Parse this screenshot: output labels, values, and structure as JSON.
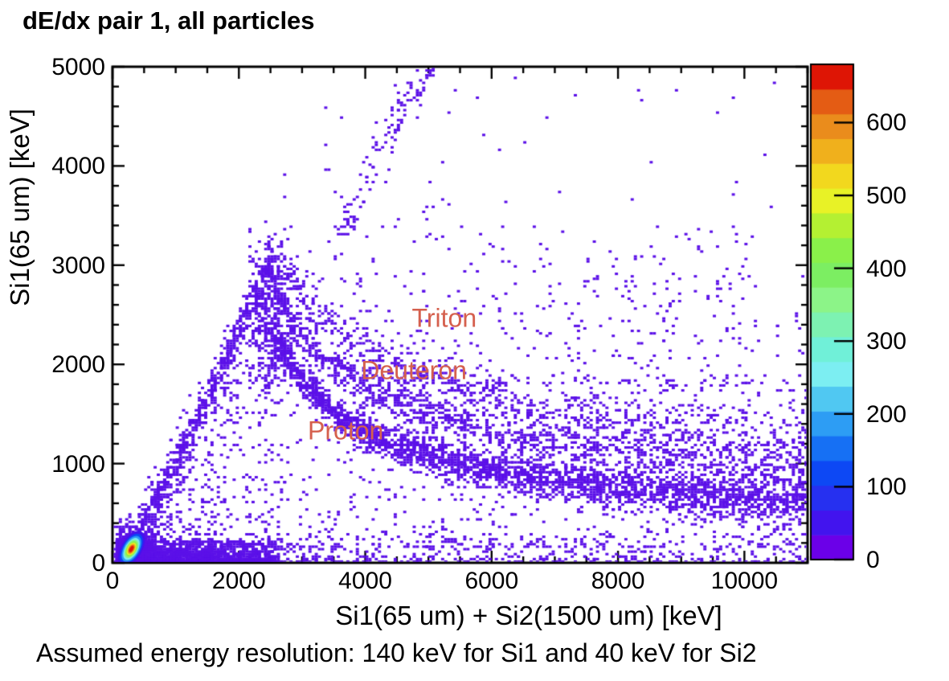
{
  "title": "dE/dx pair 1, all particles",
  "caption": "Assumed energy resolution: 140 keV for Si1 and 40 keV for Si2",
  "chart_data": {
    "type": "heatmap",
    "title": "dE/dx pair 1, all particles",
    "xlabel": "Si1(65 um) + Si2(1500 um) [keV]",
    "ylabel": "Si1(65 um) [keV]",
    "xlim": [
      0,
      11000
    ],
    "ylim": [
      0,
      5000
    ],
    "x_ticks": [
      0,
      2000,
      4000,
      6000,
      8000,
      10000
    ],
    "x_tick_labels": [
      "0",
      "2000",
      "4000",
      "6000",
      "8000",
      "10000"
    ],
    "x_minor_step": 500,
    "y_ticks": [
      0,
      1000,
      2000,
      3000,
      4000,
      5000
    ],
    "y_tick_labels": [
      "0",
      "1000",
      "2000",
      "3000",
      "4000",
      "5000"
    ],
    "y_minor_step": 200,
    "grid": false,
    "point_color": "#5b10e8",
    "annotation_color": "#d5604e",
    "annotations": [
      {
        "label": "Triton",
        "x": 5250,
        "y": 2465
      },
      {
        "label": "Deuteron",
        "x": 4770,
        "y": 1940
      },
      {
        "label": "Proton",
        "x": 3690,
        "y": 1330
      }
    ],
    "colorbar": {
      "position": "right",
      "vmin": 0,
      "vmax": 680,
      "ticks": [
        0,
        100,
        200,
        300,
        400,
        500,
        600
      ],
      "tick_labels": [
        "0",
        "100",
        "200",
        "300",
        "400",
        "500",
        "600"
      ],
      "palette": [
        "#6b00e8",
        "#4214ee",
        "#2630f0",
        "#0d48f4",
        "#1670f4",
        "#2d9df4",
        "#50c8f2",
        "#7ceef2",
        "#70f0d8",
        "#7df2b2",
        "#8cf488",
        "#7cee62",
        "#8af04a",
        "#b4f032",
        "#e8f226",
        "#f2d81e",
        "#f0b01c",
        "#ea8c1c",
        "#e45c14",
        "#de1505"
      ]
    },
    "hotspot": {
      "x": 300,
      "y": 140,
      "tilt_deg": -60,
      "rings": [
        {
          "color": "#4214ee",
          "a": 25,
          "b": 13
        },
        {
          "color": "#0d48f4",
          "a": 21,
          "b": 11
        },
        {
          "color": "#2d9df4",
          "a": 18,
          "b": 9.5
        },
        {
          "color": "#7ceef2",
          "a": 15,
          "b": 8
        },
        {
          "color": "#8cf488",
          "a": 12.5,
          "b": 7
        },
        {
          "color": "#8af04a",
          "a": 10.5,
          "b": 6
        },
        {
          "color": "#e8f226",
          "a": 8.5,
          "b": 5
        },
        {
          "color": "#f0b01c",
          "a": 7,
          "b": 4
        },
        {
          "color": "#e45c14",
          "a": 5.5,
          "b": 3
        },
        {
          "color": "#de1505",
          "a": 4,
          "b": 2
        }
      ]
    },
    "bins": {
      "x_kev": 50,
      "y_kev": 25
    },
    "seed": 7,
    "bands": [
      {
        "name": "bottom-strip",
        "type": "strip",
        "n": 2400,
        "x": [
          80,
          2600
        ],
        "xpow": 1.7,
        "y": [
          0,
          230
        ],
        "ypow": 2.2
      },
      {
        "name": "bottom-tail",
        "type": "strip",
        "n": 420,
        "x": [
          2600,
          11000
        ],
        "xpow": 1.3,
        "y": [
          0,
          280
        ],
        "ypow": 2.0
      },
      {
        "name": "origin-halo",
        "type": "blob",
        "n": 260,
        "cx": 320,
        "cy": 200,
        "sx": 170,
        "sy": 120
      },
      {
        "name": "left-edge-ridge",
        "type": "curve",
        "n": 430,
        "sigma": 55,
        "locus": [
          [
            350,
            250
          ],
          [
            700,
            650
          ],
          [
            1100,
            1150
          ],
          [
            1500,
            1650
          ],
          [
            1900,
            2200
          ],
          [
            2200,
            2600
          ],
          [
            2450,
            2950
          ],
          [
            2560,
            3120
          ]
        ]
      },
      {
        "name": "left-edge-halo",
        "type": "curve",
        "n": 260,
        "sigma": 170,
        "locus": [
          [
            350,
            250
          ],
          [
            700,
            650
          ],
          [
            1100,
            1150
          ],
          [
            1500,
            1650
          ],
          [
            1900,
            2200
          ],
          [
            2200,
            2600
          ],
          [
            2450,
            2950
          ],
          [
            2560,
            3120
          ]
        ]
      },
      {
        "name": "apex-cluster",
        "type": "blob",
        "n": 380,
        "cx": 2500,
        "cy": 2480,
        "sx": 160,
        "sy": 430
      },
      {
        "name": "proton-band",
        "type": "curve",
        "n": 2700,
        "sigma": 75,
        "sigma_end": 130,
        "xpow": 1.1,
        "locus": [
          [
            2600,
            2300
          ],
          [
            2800,
            2050
          ],
          [
            3000,
            1850
          ],
          [
            3300,
            1640
          ],
          [
            3600,
            1480
          ],
          [
            4000,
            1310
          ],
          [
            4400,
            1200
          ],
          [
            4800,
            1120
          ],
          [
            5200,
            1050
          ],
          [
            5600,
            990
          ],
          [
            6000,
            930
          ],
          [
            6500,
            880
          ],
          [
            7000,
            840
          ],
          [
            7500,
            805
          ],
          [
            8000,
            770
          ],
          [
            8500,
            740
          ],
          [
            9000,
            715
          ],
          [
            9500,
            690
          ],
          [
            10000,
            665
          ],
          [
            10500,
            645
          ],
          [
            11000,
            625
          ]
        ]
      },
      {
        "name": "deuteron-band",
        "type": "curve",
        "n": 1150,
        "sigma": 85,
        "sigma_end": 150,
        "xpow": 1.15,
        "locus": [
          [
            2650,
            2650
          ],
          [
            2900,
            2400
          ],
          [
            3200,
            2150
          ],
          [
            3500,
            1980
          ],
          [
            3900,
            1810
          ],
          [
            4300,
            1680
          ],
          [
            4700,
            1580
          ],
          [
            5100,
            1500
          ],
          [
            5500,
            1430
          ],
          [
            6000,
            1360
          ],
          [
            6500,
            1300
          ],
          [
            7000,
            1250
          ],
          [
            7500,
            1205
          ],
          [
            8000,
            1165
          ],
          [
            8500,
            1130
          ],
          [
            9000,
            1100
          ],
          [
            9500,
            1070
          ],
          [
            10000,
            1045
          ],
          [
            10500,
            1020
          ],
          [
            11000,
            1000
          ]
        ]
      },
      {
        "name": "triton-band",
        "type": "curve",
        "n": 620,
        "sigma": 100,
        "sigma_end": 170,
        "xpow": 1.15,
        "locus": [
          [
            2750,
            2950
          ],
          [
            3000,
            2700
          ],
          [
            3300,
            2480
          ],
          [
            3700,
            2280
          ],
          [
            4100,
            2130
          ],
          [
            4500,
            2010
          ],
          [
            5000,
            1890
          ],
          [
            5500,
            1790
          ],
          [
            6000,
            1710
          ],
          [
            6500,
            1640
          ],
          [
            7000,
            1580
          ],
          [
            7500,
            1530
          ],
          [
            8000,
            1480
          ],
          [
            8500,
            1440
          ],
          [
            9000,
            1400
          ],
          [
            9500,
            1370
          ],
          [
            10000,
            1340
          ],
          [
            10500,
            1315
          ],
          [
            11000,
            1290
          ]
        ]
      },
      {
        "name": "triangle-fill",
        "type": "triangle",
        "n": 430,
        "x": [
          450,
          2650
        ],
        "edge_x0": 300,
        "edge_slope": 1.28,
        "ymin": 60,
        "ycap": 3050
      },
      {
        "name": "mid-fill",
        "type": "strip",
        "n": 620,
        "x": [
          2650,
          11000
        ],
        "xpow": 1.0,
        "y": [
          150,
          1900
        ],
        "ypow": 1.6
      },
      {
        "name": "upper-fill",
        "type": "strip",
        "n": 300,
        "x": [
          2700,
          10200
        ],
        "xpow": 1.05,
        "y": [
          1800,
          3400
        ],
        "ypow": 1.4
      },
      {
        "name": "upper-spray",
        "type": "curve",
        "n": 120,
        "sigma": 120,
        "locus": [
          [
            3500,
            3150
          ],
          [
            3800,
            3560
          ],
          [
            4100,
            3960
          ],
          [
            4400,
            4360
          ],
          [
            4700,
            4720
          ],
          [
            5050,
            4960
          ]
        ]
      },
      {
        "name": "top-sparse",
        "type": "uniform",
        "n": 60,
        "x": [
          3000,
          10600
        ],
        "y": [
          3000,
          4900
        ]
      },
      {
        "name": "right-high-sparse",
        "type": "uniform",
        "n": 110,
        "x": [
          6800,
          11000
        ],
        "y": [
          1400,
          2900
        ]
      }
    ]
  }
}
